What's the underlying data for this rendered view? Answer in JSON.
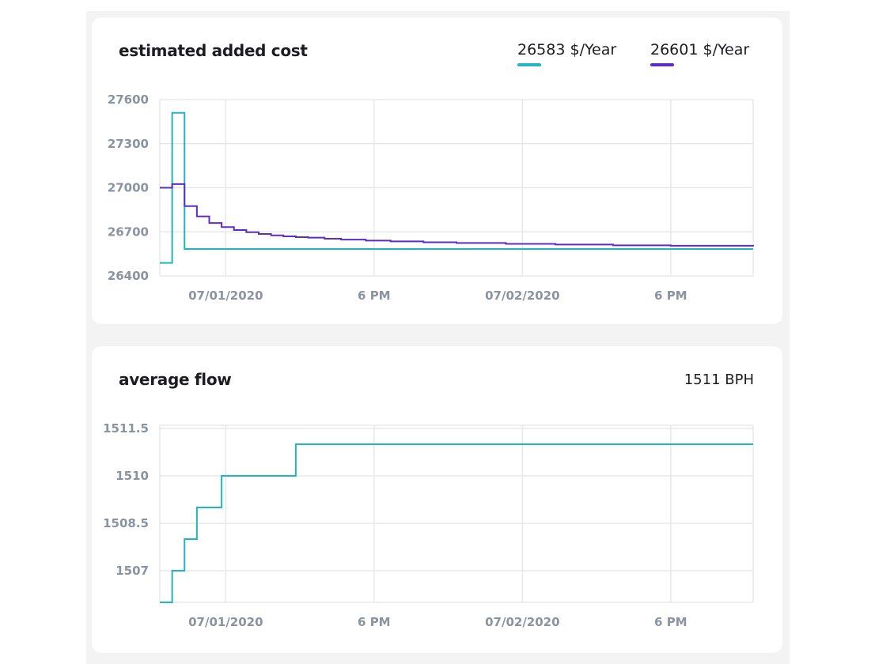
{
  "colors": {
    "teal": "#21b6bf",
    "purple": "#5b2dc7",
    "grid": "#e6e8eb",
    "tick": "#8a93a0"
  },
  "cost_card": {
    "title": "estimated added cost",
    "legend": [
      {
        "label": "26583 $/Year",
        "color": "#21b6bf"
      },
      {
        "label": "26601 $/Year",
        "color": "#5b2dc7"
      }
    ]
  },
  "flow_card": {
    "title": "average flow",
    "value": "1511 BPH"
  },
  "chart_data": [
    {
      "type": "line",
      "step": true,
      "title": "estimated added cost",
      "x_unit": "hours from 6/30/2020 16:00",
      "x_ticks": [
        "07/01/2020",
        "6 PM",
        "07/02/2020",
        "6 PM"
      ],
      "x_tick_values": [
        8,
        26,
        44,
        62
      ],
      "xlim": [
        0,
        72
      ],
      "y_ticks": [
        "27600",
        "27300",
        "27000",
        "26700",
        "26400"
      ],
      "y_tick_values": [
        27600,
        27300,
        27000,
        26700,
        26400
      ],
      "ylim": [
        26400,
        27600
      ],
      "grid": true,
      "legend_position": "top-right",
      "series": [
        {
          "name": "26583 $/Year",
          "color": "#21b6bf",
          "x": [
            0,
            1.5,
            3,
            72
          ],
          "y": [
            26488,
            27510,
            26583,
            26583
          ]
        },
        {
          "name": "26601 $/Year",
          "color": "#5b2dc7",
          "x": [
            0,
            1.5,
            3,
            4.5,
            6,
            7.5,
            9,
            10.5,
            12,
            13.5,
            15,
            16.5,
            18,
            20,
            22,
            25,
            28,
            32,
            36,
            42,
            48,
            55,
            62,
            72
          ],
          "y": [
            27000,
            27025,
            26875,
            26805,
            26760,
            26732,
            26712,
            26697,
            26685,
            26676,
            26669,
            26664,
            26660,
            26653,
            26647,
            26640,
            26635,
            26629,
            26624,
            26618,
            26613,
            26608,
            26605,
            26601
          ]
        }
      ]
    },
    {
      "type": "line",
      "step": true,
      "title": "average flow",
      "x_ticks": [
        "07/01/2020",
        "6 PM",
        "07/02/2020",
        "6 PM"
      ],
      "x_tick_values": [
        8,
        26,
        44,
        62
      ],
      "xlim": [
        0,
        72
      ],
      "y_ticks": [
        "1511.5",
        "1510",
        "1508.5",
        "1507"
      ],
      "y_tick_values": [
        1511.5,
        1510,
        1508.5,
        1507
      ],
      "ylim": [
        1506,
        1511.6
      ],
      "grid": true,
      "series": [
        {
          "color": "#21b6bf",
          "x": [
            0,
            1.5,
            3,
            4.5,
            7.5,
            16.5,
            72
          ],
          "y": [
            1506,
            1507,
            1508,
            1509,
            1510,
            1511,
            1511
          ]
        }
      ]
    }
  ]
}
